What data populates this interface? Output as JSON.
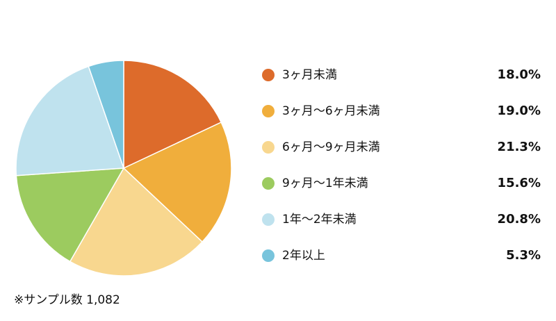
{
  "chart_data": {
    "type": "pie",
    "categories": [
      "3ヶ月未満",
      "3ヶ月〜6ヶ月未満",
      "6ヶ月〜9ヶ月未満",
      "9ヶ月〜1年未満",
      "1年〜2年未満",
      "2年以上"
    ],
    "values": [
      18.0,
      19.0,
      21.3,
      15.6,
      20.8,
      5.3
    ],
    "value_labels": [
      "18.0%",
      "19.0%",
      "21.3%",
      "15.6%",
      "20.8%",
      "5.3%"
    ],
    "colors": [
      "#dd6b2b",
      "#f0ae3c",
      "#f8d78f",
      "#9ccb5f",
      "#bfe2ee",
      "#78c4dc"
    ],
    "note": "※サンプル数 1,082"
  }
}
